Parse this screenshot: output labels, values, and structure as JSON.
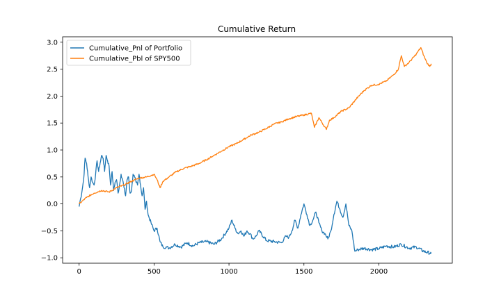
{
  "chart_data": {
    "type": "line",
    "title": "Cumulative Return",
    "xlabel": "",
    "ylabel": "",
    "xlim": [
      -110,
      2490
    ],
    "ylim": [
      -1.1,
      3.1
    ],
    "xticks": [
      0,
      500,
      1000,
      1500,
      2000
    ],
    "xtick_labels": [
      "0",
      "500",
      "1000",
      "1500",
      "2000"
    ],
    "yticks": [
      -1.0,
      -0.5,
      0.0,
      0.5,
      1.0,
      1.5,
      2.0,
      2.5,
      3.0
    ],
    "ytick_labels": [
      "−1.0",
      "−0.5",
      "0.0",
      "0.5",
      "1.0",
      "1.5",
      "2.0",
      "2.5",
      "3.0"
    ],
    "grid": false,
    "legend_position": "top-left",
    "series": [
      {
        "name": "Cumulative_Pnl of Portfolio",
        "color": "#1f77b4",
        "x": [
          0,
          10,
          20,
          30,
          40,
          50,
          60,
          70,
          80,
          90,
          100,
          110,
          120,
          130,
          140,
          150,
          160,
          170,
          180,
          190,
          200,
          210,
          220,
          230,
          240,
          250,
          260,
          270,
          280,
          290,
          300,
          310,
          320,
          330,
          340,
          350,
          360,
          370,
          380,
          390,
          400,
          410,
          420,
          430,
          440,
          450,
          460,
          480,
          500,
          520,
          540,
          560,
          580,
          600,
          640,
          680,
          720,
          760,
          800,
          850,
          900,
          950,
          1000,
          1020,
          1040,
          1060,
          1080,
          1100,
          1120,
          1140,
          1160,
          1180,
          1200,
          1250,
          1300,
          1350,
          1380,
          1400,
          1420,
          1440,
          1460,
          1480,
          1500,
          1520,
          1540,
          1560,
          1580,
          1600,
          1620,
          1640,
          1660,
          1680,
          1700,
          1720,
          1740,
          1760,
          1780,
          1800,
          1820,
          1840,
          1860,
          1900,
          1950,
          2000,
          2050,
          2100,
          2150,
          2200,
          2250,
          2300,
          2350
        ],
        "y": [
          -0.05,
          0.1,
          0.25,
          0.45,
          0.85,
          0.75,
          0.5,
          0.3,
          0.5,
          0.4,
          0.35,
          0.55,
          0.8,
          0.6,
          0.75,
          0.9,
          0.85,
          0.6,
          0.9,
          0.8,
          0.7,
          0.35,
          0.6,
          0.25,
          0.4,
          0.45,
          0.2,
          0.35,
          0.55,
          0.45,
          0.3,
          0.15,
          0.45,
          0.5,
          0.2,
          0.25,
          0.55,
          0.5,
          0.4,
          0.35,
          0.55,
          0.35,
          0.15,
          0.3,
          -0.1,
          0.05,
          -0.2,
          -0.35,
          -0.5,
          -0.45,
          -0.7,
          -0.8,
          -0.8,
          -0.82,
          -0.75,
          -0.8,
          -0.72,
          -0.78,
          -0.72,
          -0.7,
          -0.75,
          -0.65,
          -0.45,
          -0.3,
          -0.45,
          -0.55,
          -0.5,
          -0.6,
          -0.5,
          -0.55,
          -0.65,
          -0.6,
          -0.5,
          -0.68,
          -0.7,
          -0.72,
          -0.6,
          -0.62,
          -0.5,
          -0.3,
          -0.45,
          -0.2,
          0.0,
          -0.2,
          -0.4,
          -0.3,
          -0.15,
          -0.35,
          -0.5,
          -0.55,
          -0.65,
          -0.5,
          -0.2,
          0.05,
          -0.1,
          -0.25,
          0.0,
          -0.4,
          -0.5,
          -0.88,
          -0.85,
          -0.82,
          -0.85,
          -0.83,
          -0.78,
          -0.8,
          -0.75,
          -0.82,
          -0.8,
          -0.88,
          -0.92
        ]
      },
      {
        "name": "Cumulative_Pbl of SPY500",
        "color": "#ff7f0e",
        "x": [
          0,
          50,
          100,
          150,
          200,
          250,
          300,
          350,
          400,
          450,
          500,
          520,
          540,
          560,
          600,
          650,
          700,
          750,
          800,
          850,
          900,
          950,
          1000,
          1050,
          1100,
          1150,
          1200,
          1250,
          1300,
          1350,
          1400,
          1450,
          1500,
          1550,
          1570,
          1600,
          1650,
          1670,
          1700,
          1750,
          1800,
          1850,
          1900,
          1950,
          2000,
          2050,
          2100,
          2130,
          2150,
          2170,
          2200,
          2250,
          2280,
          2300,
          2320,
          2340,
          2350
        ],
        "y": [
          0.0,
          0.12,
          0.2,
          0.25,
          0.22,
          0.3,
          0.35,
          0.42,
          0.48,
          0.5,
          0.55,
          0.45,
          0.3,
          0.42,
          0.5,
          0.6,
          0.66,
          0.7,
          0.75,
          0.82,
          0.9,
          0.98,
          1.06,
          1.12,
          1.2,
          1.28,
          1.33,
          1.4,
          1.48,
          1.52,
          1.58,
          1.62,
          1.65,
          1.68,
          1.42,
          1.6,
          1.38,
          1.55,
          1.6,
          1.72,
          1.78,
          1.95,
          2.1,
          2.2,
          2.22,
          2.28,
          2.4,
          2.5,
          2.75,
          2.55,
          2.62,
          2.78,
          2.9,
          2.75,
          2.62,
          2.55,
          2.6
        ]
      }
    ]
  }
}
